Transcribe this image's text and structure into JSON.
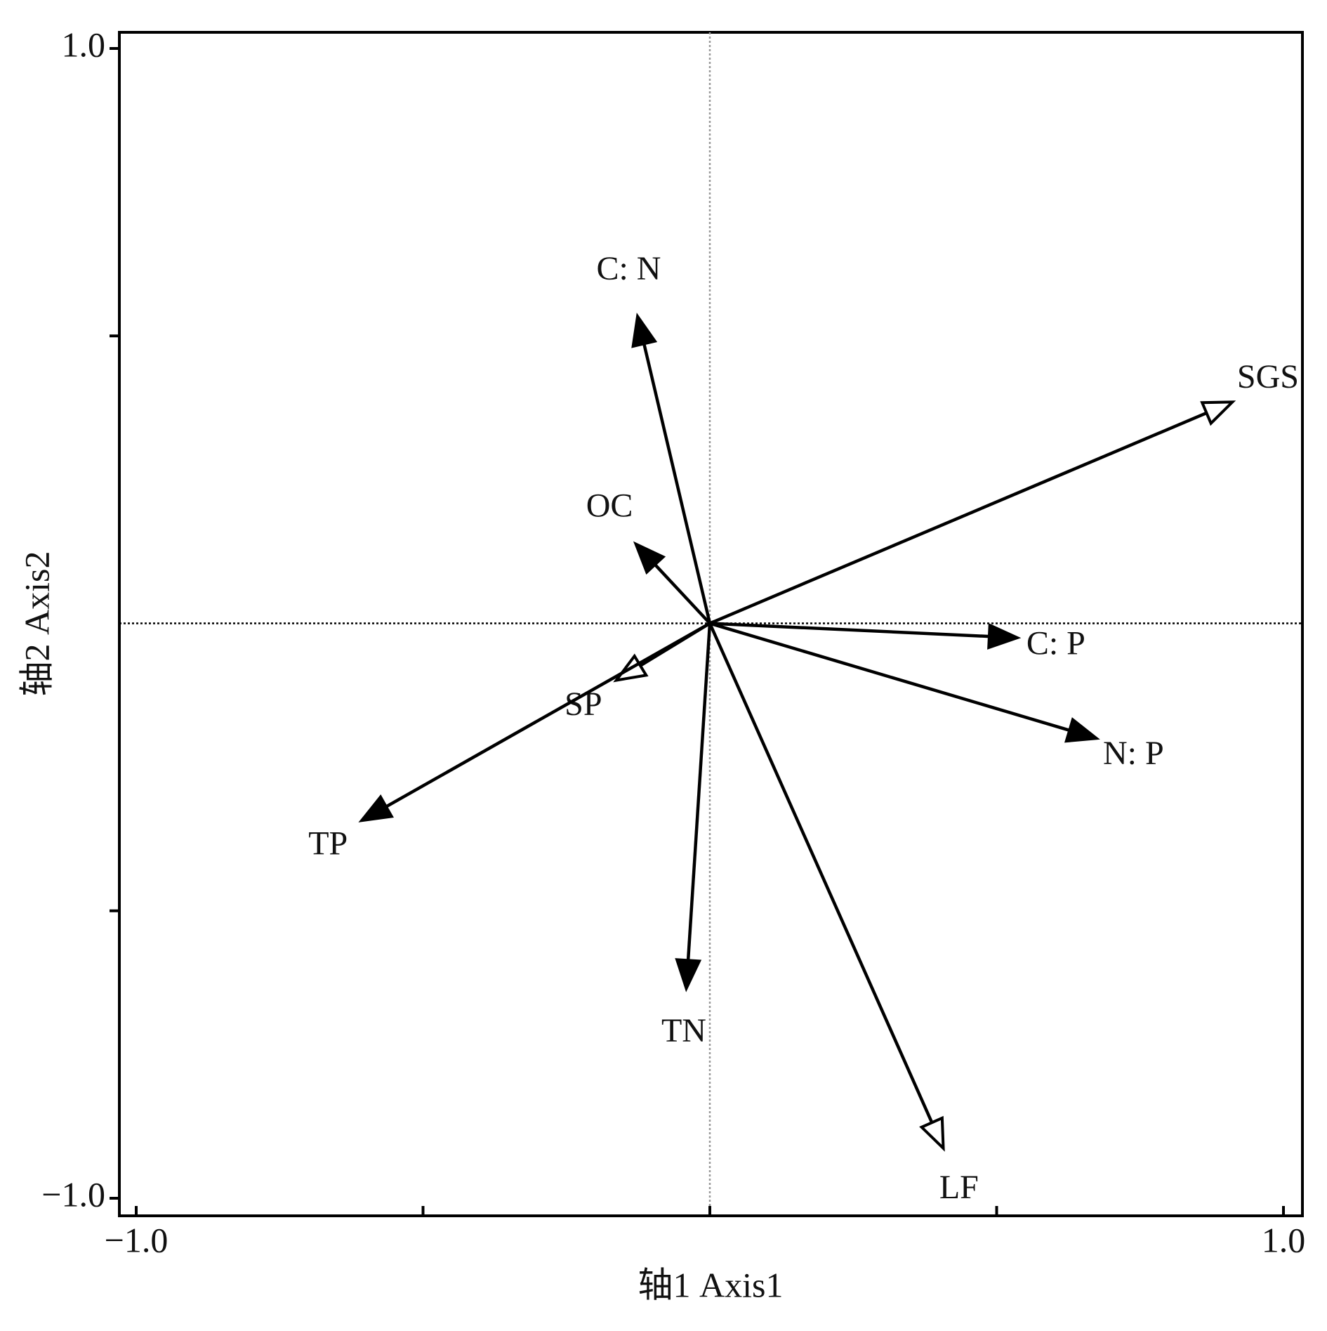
{
  "chart_data": {
    "type": "biplot",
    "xlabel": "轴1 Axis1",
    "ylabel": "轴2 Axis2",
    "xlim": [
      -1.0,
      1.0
    ],
    "ylim": [
      -1.0,
      1.0
    ],
    "xticks": [
      {
        "value": -1.0,
        "label": "−1.0"
      },
      {
        "value": -0.5,
        "label": null
      },
      {
        "value": 0,
        "label": null
      },
      {
        "value": 0.5,
        "label": null
      },
      {
        "value": 1.0,
        "label": "1.0"
      }
    ],
    "yticks": [
      {
        "value": -1.0,
        "label": "−1.0"
      },
      {
        "value": -0.5,
        "label": null
      },
      {
        "value": 0.5,
        "label": null
      },
      {
        "value": 1.0,
        "label": "1.0"
      }
    ],
    "zero_lines": true,
    "color": "#000000",
    "vectors": [
      {
        "name": "C: N",
        "x": -0.126,
        "y": 0.534,
        "head": "filled"
      },
      {
        "name": "SGS",
        "x": 0.911,
        "y": 0.385,
        "head": "open"
      },
      {
        "name": "OC",
        "x": -0.129,
        "y": 0.138,
        "head": "filled"
      },
      {
        "name": "C: P",
        "x": 0.536,
        "y": -0.025,
        "head": "filled"
      },
      {
        "name": "N: P",
        "x": 0.674,
        "y": -0.2,
        "head": "filled"
      },
      {
        "name": "SP",
        "x": -0.163,
        "y": -0.099,
        "head": "open"
      },
      {
        "name": "TP",
        "x": -0.607,
        "y": -0.343,
        "head": "filled"
      },
      {
        "name": "TN",
        "x": -0.041,
        "y": -0.635,
        "head": "filled"
      },
      {
        "name": "LF",
        "x": 0.407,
        "y": -0.913,
        "head": "open"
      }
    ]
  }
}
